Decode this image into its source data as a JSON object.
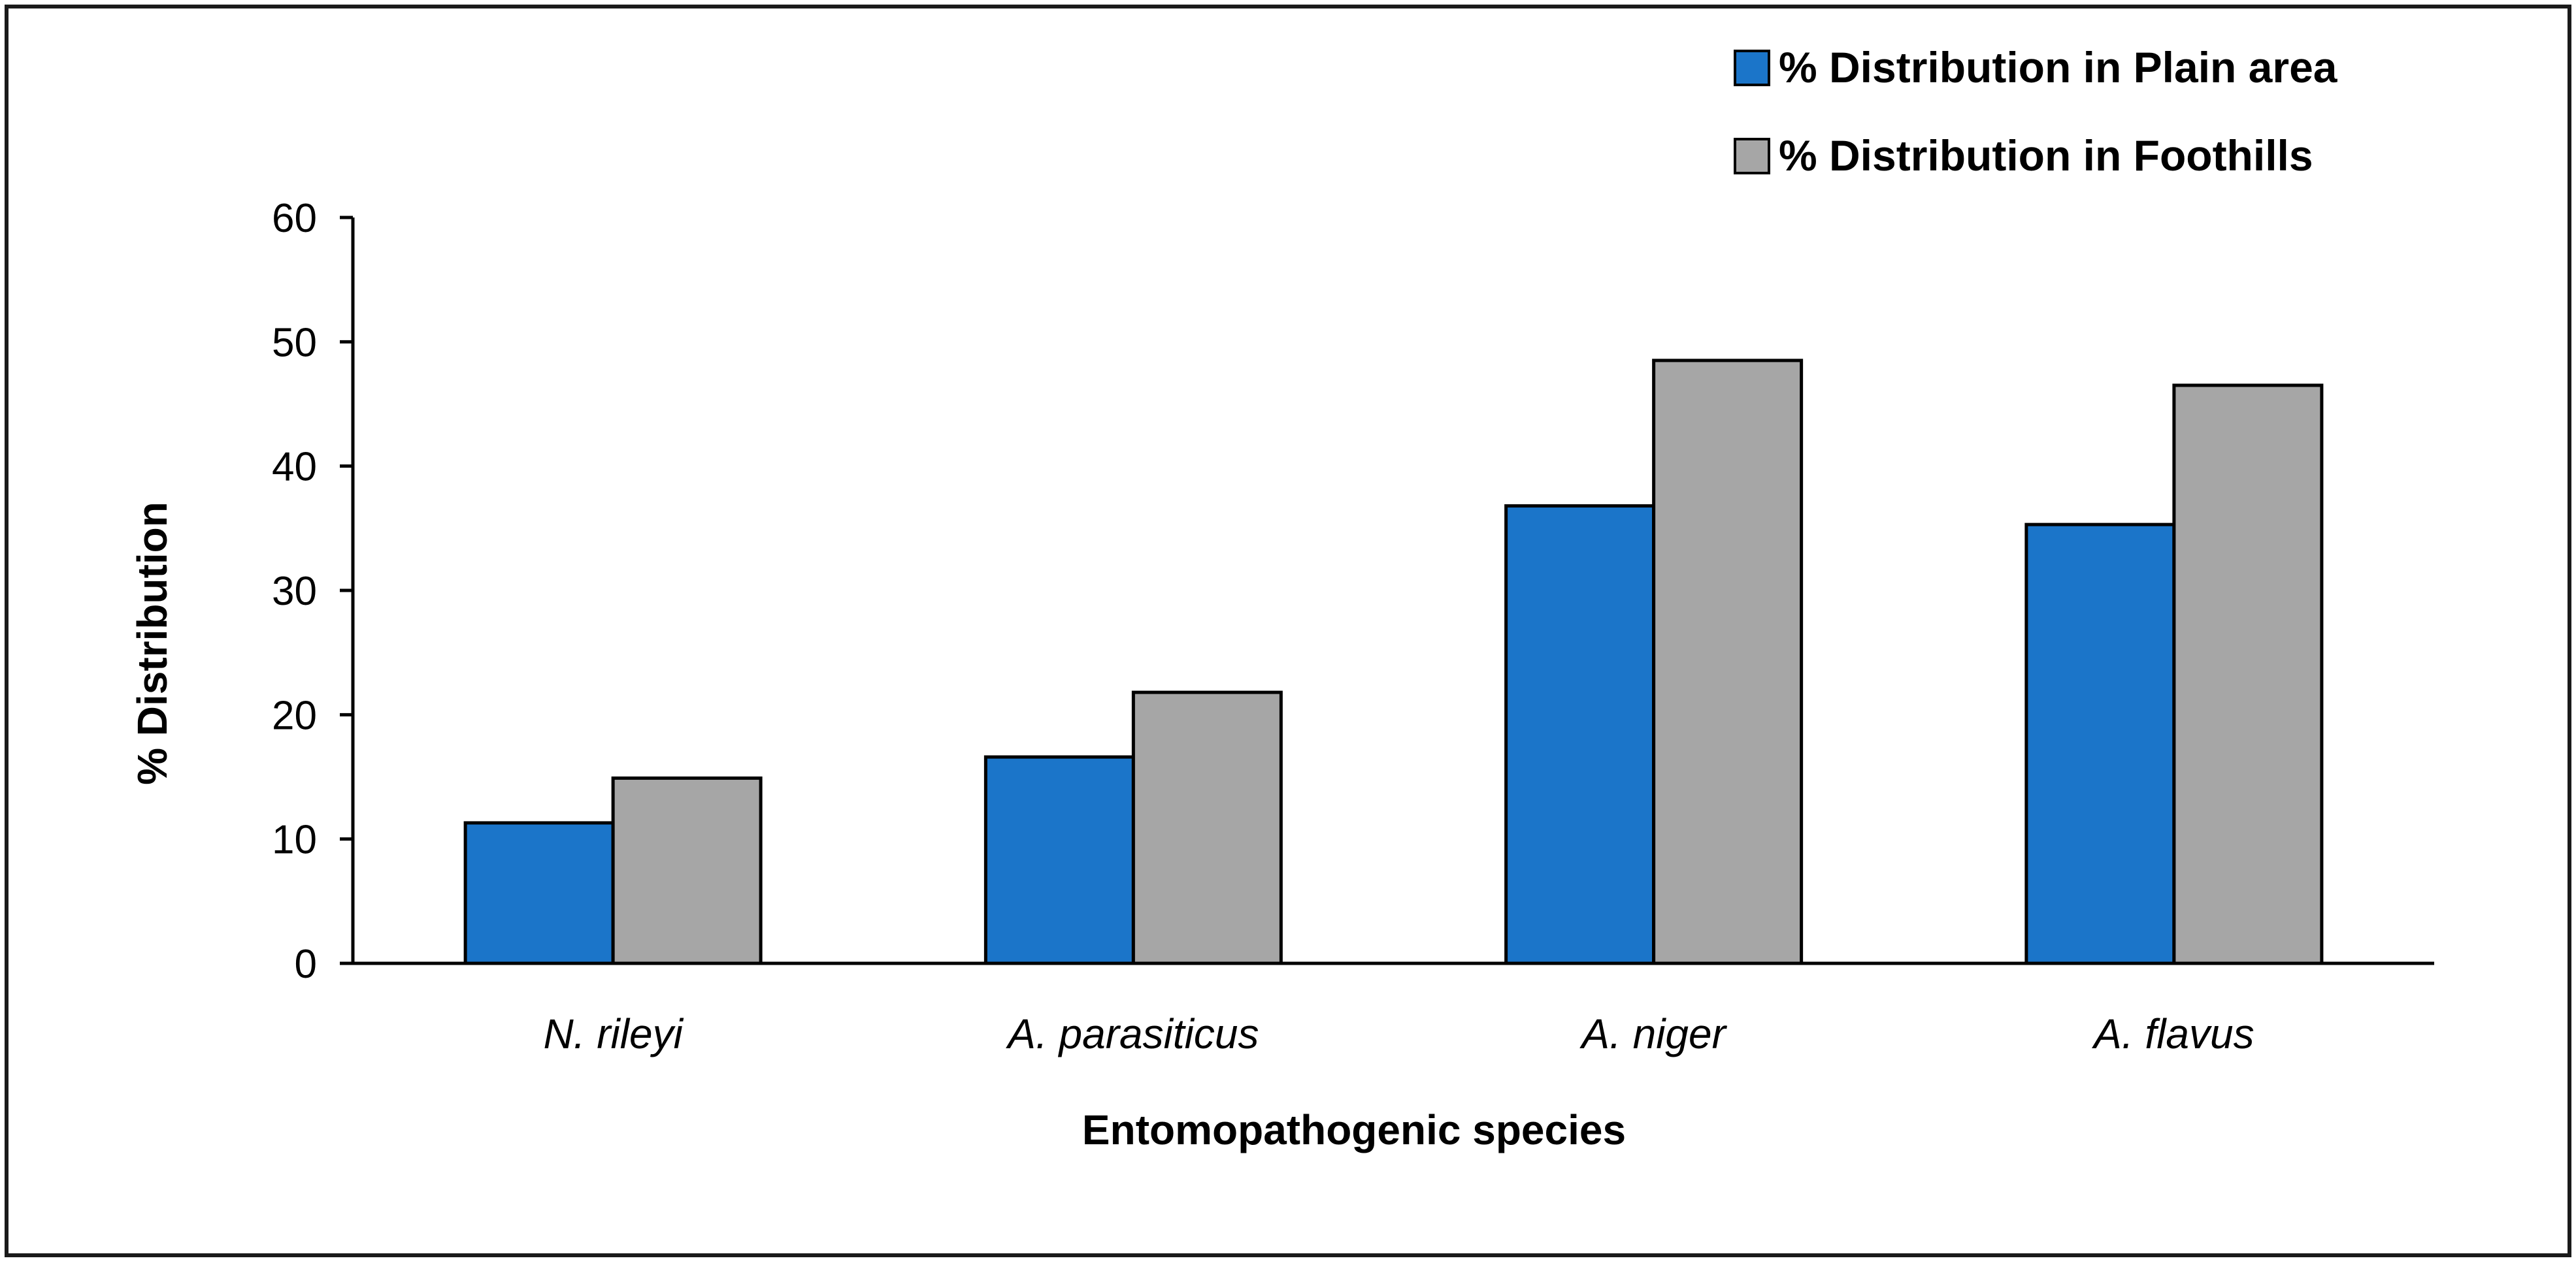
{
  "chart_data": {
    "type": "bar",
    "title": "",
    "xlabel": "Entomopathogenic species",
    "ylabel": "% Distribution",
    "ylim": [
      0,
      60
    ],
    "yticks": [
      0,
      10,
      20,
      30,
      40,
      50,
      60
    ],
    "grid": false,
    "legend_position": "top-right",
    "categories": [
      "N. rileyi",
      "A. parasiticus",
      "A. niger",
      "A. flavus"
    ],
    "series": [
      {
        "name": "% Distribution in Plain area",
        "color": "#1B75C9",
        "values": [
          11.3,
          16.6,
          36.8,
          35.3
        ]
      },
      {
        "name": "% Distribution in Foothills",
        "color": "#A6A6A6",
        "values": [
          14.9,
          21.8,
          48.5,
          46.5
        ]
      }
    ]
  }
}
